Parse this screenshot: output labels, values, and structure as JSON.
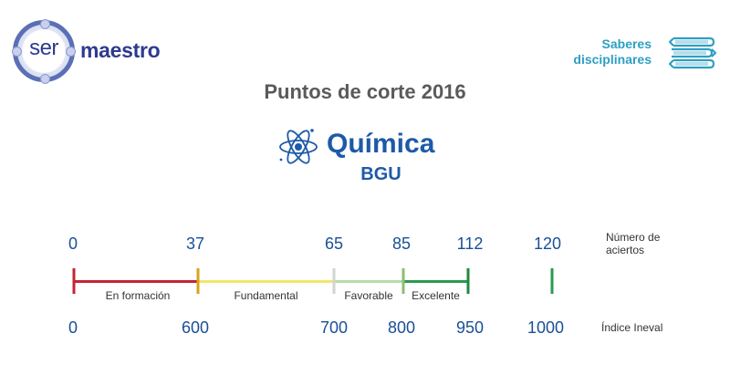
{
  "logo": {
    "ser": "ser",
    "maestro": "maestro"
  },
  "saberes": {
    "line1": "Saberes",
    "line2": "disciplinares",
    "icon": "books-icon"
  },
  "title": "Puntos de corte  2016",
  "subject": {
    "name": "Química",
    "level": "BGU",
    "icon": "atom-icon"
  },
  "scale": {
    "top_label": "Número de aciertos",
    "top_label_line1": "Número de",
    "top_label_line2": "aciertos",
    "bottom_label": "Índice Ineval",
    "aciertos": [
      "0",
      "37",
      "65",
      "85",
      "112",
      "120"
    ],
    "ineval": [
      "0",
      "600",
      "700",
      "800",
      "950",
      "1000"
    ],
    "segments": [
      {
        "label": "En formación",
        "color": "#c42434"
      },
      {
        "label": "Fundamental",
        "color": "#f1e86a"
      },
      {
        "label": "Favorable",
        "color": "#b9dca6"
      },
      {
        "label": "Excelente",
        "color": "#2c9a4c"
      }
    ]
  }
}
